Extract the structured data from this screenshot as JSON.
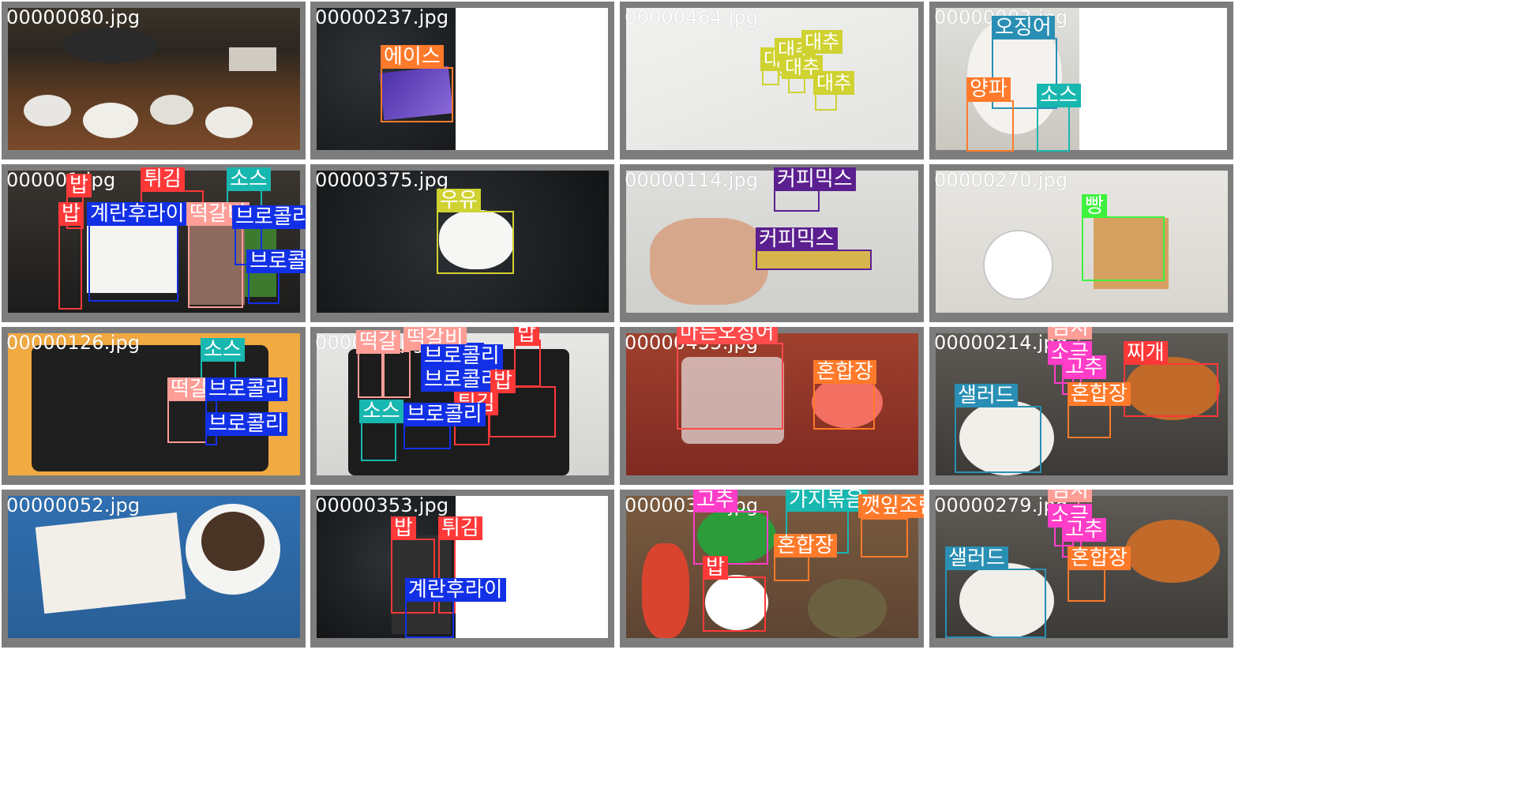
{
  "palette": {
    "red": "#ff3838",
    "orange": "#ff7a2a",
    "blue": "#1230e6",
    "teal": "#18b7b0",
    "yellow": "#cfd231",
    "purple": "#5b1f8f",
    "salmon": "#ff9d97",
    "pink": "#ff3dc8",
    "green": "#3df23d",
    "steelblue": "#2a8fb4",
    "coral": "#ff4b4b"
  },
  "tiles": [
    {
      "filename": "00000080.jpg",
      "labels": []
    },
    {
      "filename": "00000237.jpg",
      "labels": [
        "에이스"
      ]
    },
    {
      "filename": "00000464.jpg",
      "labels": [
        "대추",
        "대추",
        "대추",
        "대추",
        "대추"
      ]
    },
    {
      "filename": "00000003.jpg",
      "labels": [
        "오징어",
        "양파",
        "소스"
      ]
    },
    {
      "filename": "000001.jpg",
      "labels": [
        "밥",
        "튀김",
        "소스",
        "밥",
        "계란후라이",
        "떡갈비",
        "브로콜리",
        "브로콜리"
      ]
    },
    {
      "filename": "00000375.jpg",
      "labels": [
        "우유"
      ]
    },
    {
      "filename": "00000114.jpg",
      "labels": [
        "커피믹스",
        "커피믹스"
      ]
    },
    {
      "filename": "00000270.jpg",
      "labels": [
        "빵"
      ]
    },
    {
      "filename": "00000126.jpg",
      "labels": [
        "소스",
        "떡갈",
        "브로콜리",
        "브로콜리"
      ]
    },
    {
      "filename": "000003.jpg",
      "labels": [
        "떡갈",
        "떡갈비",
        "브로콜리",
        "브로콜리",
        "밥",
        "튀김",
        "소스",
        "브로콜리",
        "밥"
      ]
    },
    {
      "filename": "00000455.jpg",
      "labels": [
        "마른오징어",
        "혼합장"
      ]
    },
    {
      "filename": "00000214.jpg",
      "labels": [
        "김치",
        "소금",
        "고추",
        "찌개",
        "샐러드",
        "혼합장"
      ]
    },
    {
      "filename": "00000052.jpg",
      "labels": []
    },
    {
      "filename": "00000353.jpg",
      "labels": [
        "밥",
        "튀김",
        "계란후라이"
      ]
    },
    {
      "filename": "00000335.jpg",
      "labels": [
        "고추",
        "가지볶음",
        "깻잎조림",
        "혼합장",
        "밥"
      ]
    },
    {
      "filename": "00000279.jpg",
      "labels": [
        "김치",
        "소금",
        "고추",
        "샐러드",
        "혼합장"
      ]
    }
  ]
}
